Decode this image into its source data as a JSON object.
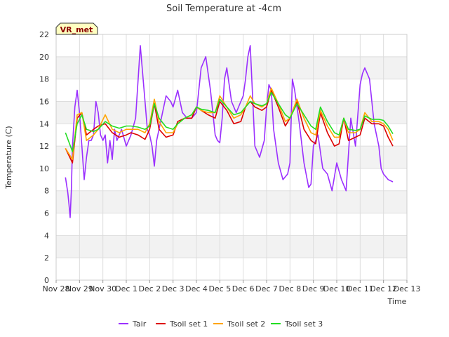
{
  "chart_data": {
    "type": "line",
    "title": "Soil Temperature at -4cm",
    "xlabel": "Time",
    "ylabel": "Temperature (C)",
    "ylim": [
      0,
      22
    ],
    "yticks": [
      0,
      2,
      4,
      6,
      8,
      10,
      12,
      14,
      16,
      18,
      20,
      22
    ],
    "xlim": [
      0,
      15
    ],
    "xticks": [
      {
        "pos": 0,
        "label": "Nov 28"
      },
      {
        "pos": 1,
        "label": "Nov 29"
      },
      {
        "pos": 2,
        "label": "Nov 30"
      },
      {
        "pos": 3,
        "label": "Dec 1"
      },
      {
        "pos": 4,
        "label": "Dec 2"
      },
      {
        "pos": 5,
        "label": "Dec 3"
      },
      {
        "pos": 6,
        "label": "Dec 4"
      },
      {
        "pos": 7,
        "label": "Dec 5"
      },
      {
        "pos": 8,
        "label": "Dec 6"
      },
      {
        "pos": 9,
        "label": "Dec 7"
      },
      {
        "pos": 10,
        "label": "Dec 8"
      },
      {
        "pos": 11,
        "label": "Dec 9"
      },
      {
        "pos": 12,
        "label": "Dec 10"
      },
      {
        "pos": 13,
        "label": "Dec 11"
      },
      {
        "pos": 14,
        "label": "Dec 12"
      },
      {
        "pos": 15,
        "label": "Dec 13"
      }
    ],
    "banded_background": true,
    "legend_placement": "bottom-center",
    "annotation": "VR_met",
    "series": [
      {
        "name": "Tair",
        "color": "#9b30ff",
        "x": [
          0.4,
          0.5,
          0.55,
          0.6,
          0.65,
          0.7,
          0.8,
          0.9,
          1.0,
          1.1,
          1.2,
          1.3,
          1.4,
          1.5,
          1.6,
          1.7,
          1.8,
          1.9,
          2.0,
          2.1,
          2.2,
          2.3,
          2.4,
          2.5,
          2.6,
          2.8,
          3.0,
          3.2,
          3.4,
          3.6,
          3.8,
          3.9,
          4.0,
          4.1,
          4.2,
          4.3,
          4.5,
          4.7,
          4.9,
          5.0,
          5.2,
          5.4,
          5.6,
          5.8,
          6.0,
          6.2,
          6.4,
          6.6,
          6.8,
          6.9,
          7.0,
          7.1,
          7.2,
          7.3,
          7.5,
          7.7,
          7.9,
          8.0,
          8.1,
          8.2,
          8.3,
          8.5,
          8.7,
          8.9,
          9.0,
          9.1,
          9.2,
          9.3,
          9.5,
          9.7,
          9.9,
          10.0,
          10.1,
          10.2,
          10.4,
          10.6,
          10.8,
          10.9,
          11.0,
          11.2,
          11.4,
          11.6,
          11.8,
          12.0,
          12.2,
          12.4,
          12.6,
          12.8,
          13.0,
          13.1,
          13.2,
          13.4,
          13.6,
          13.8,
          13.9,
          14.0,
          14.2,
          14.4
        ],
        "y": [
          9.2,
          7.8,
          6.8,
          5.6,
          8.0,
          12.0,
          15.5,
          17.0,
          15.0,
          12.0,
          9.0,
          11.0,
          12.5,
          12.5,
          13.0,
          16.0,
          15.0,
          13.0,
          12.5,
          13.0,
          10.5,
          12.5,
          10.8,
          13.5,
          12.5,
          13.5,
          12.0,
          13.0,
          14.5,
          21.0,
          16.0,
          13.5,
          13.0,
          12.0,
          10.2,
          12.5,
          14.5,
          16.5,
          16.0,
          15.5,
          17.0,
          15.0,
          14.5,
          14.5,
          15.0,
          19.0,
          20.0,
          17.0,
          13.0,
          12.5,
          12.3,
          14.5,
          18.0,
          19.0,
          16.0,
          15.0,
          16.0,
          16.5,
          18.0,
          20.0,
          21.0,
          12.0,
          11.0,
          12.5,
          15.5,
          17.5,
          17.0,
          13.5,
          10.5,
          9.0,
          9.5,
          10.5,
          18.0,
          17.0,
          14.0,
          10.5,
          8.3,
          8.6,
          12.0,
          13.0,
          10.0,
          9.5,
          8.0,
          10.5,
          9.0,
          8.0,
          14.5,
          12.0,
          17.5,
          18.5,
          19.0,
          18.0,
          14.0,
          12.0,
          10.0,
          9.5,
          9.0,
          8.8
        ]
      },
      {
        "name": "Tsoil set 1",
        "color": "#dd0000",
        "x": [
          0.4,
          0.7,
          0.9,
          1.1,
          1.3,
          1.6,
          1.8,
          2.1,
          2.4,
          2.7,
          3.0,
          3.2,
          3.5,
          3.8,
          4.0,
          4.2,
          4.4,
          4.7,
          5.0,
          5.2,
          5.5,
          5.8,
          6.0,
          6.2,
          6.5,
          6.8,
          7.0,
          7.3,
          7.6,
          7.9,
          8.1,
          8.3,
          8.5,
          8.8,
          9.0,
          9.2,
          9.5,
          9.8,
          10.0,
          10.3,
          10.6,
          10.9,
          11.1,
          11.3,
          11.6,
          11.9,
          12.1,
          12.3,
          12.5,
          12.8,
          13.0,
          13.2,
          13.5,
          13.8,
          14.0,
          14.2,
          14.4
        ],
        "y": [
          11.8,
          10.5,
          14.5,
          15.0,
          13.0,
          13.5,
          13.8,
          14.0,
          13.2,
          12.8,
          13.0,
          13.2,
          13.0,
          12.6,
          13.5,
          15.8,
          13.5,
          12.8,
          13.0,
          14.2,
          14.5,
          14.5,
          15.5,
          15.2,
          14.8,
          14.5,
          16.0,
          15.2,
          14.0,
          14.2,
          15.5,
          16.0,
          15.5,
          15.2,
          15.5,
          17.0,
          15.5,
          13.8,
          14.5,
          16.0,
          13.5,
          12.5,
          12.2,
          15.0,
          13.2,
          12.0,
          12.2,
          14.5,
          12.5,
          12.8,
          13.0,
          14.5,
          14.0,
          14.0,
          13.8,
          12.8,
          12.0
        ]
      },
      {
        "name": "Tsoil set 2",
        "color": "#ffa500",
        "x": [
          0.4,
          0.7,
          0.9,
          1.1,
          1.3,
          1.6,
          1.8,
          2.1,
          2.4,
          2.7,
          3.0,
          3.2,
          3.5,
          3.8,
          4.0,
          4.2,
          4.4,
          4.7,
          5.0,
          5.2,
          5.5,
          5.8,
          6.0,
          6.2,
          6.5,
          6.8,
          7.0,
          7.3,
          7.6,
          7.9,
          8.1,
          8.3,
          8.5,
          8.8,
          9.0,
          9.2,
          9.5,
          9.8,
          10.0,
          10.3,
          10.6,
          10.9,
          11.1,
          11.3,
          11.6,
          11.9,
          12.1,
          12.3,
          12.5,
          12.8,
          13.0,
          13.2,
          13.5,
          13.8,
          14.0,
          14.2,
          14.4
        ],
        "y": [
          11.8,
          10.8,
          14.8,
          15.0,
          12.5,
          13.0,
          13.5,
          14.8,
          13.5,
          13.2,
          13.5,
          13.5,
          13.5,
          13.2,
          14.0,
          16.2,
          14.2,
          13.2,
          13.2,
          14.0,
          14.5,
          14.8,
          15.5,
          15.2,
          15.0,
          15.0,
          16.5,
          15.5,
          14.5,
          14.8,
          15.5,
          16.5,
          15.8,
          15.5,
          15.8,
          17.2,
          15.8,
          14.2,
          14.5,
          16.2,
          14.5,
          13.2,
          13.0,
          15.2,
          13.8,
          12.8,
          12.8,
          14.5,
          13.2,
          13.2,
          13.5,
          15.0,
          14.2,
          14.2,
          14.0,
          13.5,
          12.5
        ]
      },
      {
        "name": "Tsoil set 3",
        "color": "#22dd22",
        "x": [
          0.4,
          0.7,
          0.9,
          1.1,
          1.3,
          1.6,
          1.8,
          2.1,
          2.4,
          2.7,
          3.0,
          3.2,
          3.5,
          3.8,
          4.0,
          4.2,
          4.4,
          4.7,
          5.0,
          5.2,
          5.5,
          5.8,
          6.0,
          6.2,
          6.5,
          6.8,
          7.0,
          7.3,
          7.6,
          7.9,
          8.1,
          8.3,
          8.5,
          8.8,
          9.0,
          9.2,
          9.5,
          9.8,
          10.0,
          10.3,
          10.6,
          10.9,
          11.1,
          11.3,
          11.6,
          11.9,
          12.1,
          12.3,
          12.5,
          12.8,
          13.0,
          13.2,
          13.5,
          13.8,
          14.0,
          14.2,
          14.4
        ],
        "y": [
          13.2,
          11.5,
          14.0,
          14.8,
          13.5,
          13.3,
          13.5,
          14.2,
          13.8,
          13.6,
          13.8,
          13.8,
          13.7,
          13.5,
          13.8,
          15.8,
          14.5,
          13.7,
          13.5,
          14.0,
          14.5,
          14.8,
          15.5,
          15.3,
          15.2,
          15.0,
          16.2,
          15.5,
          14.8,
          15.0,
          15.5,
          16.0,
          15.8,
          15.6,
          15.8,
          16.8,
          15.8,
          14.8,
          14.5,
          15.8,
          14.8,
          13.8,
          13.5,
          15.5,
          14.2,
          13.2,
          13.0,
          14.5,
          13.5,
          13.4,
          13.5,
          14.7,
          14.4,
          14.4,
          14.3,
          13.8,
          13.1
        ]
      }
    ]
  }
}
